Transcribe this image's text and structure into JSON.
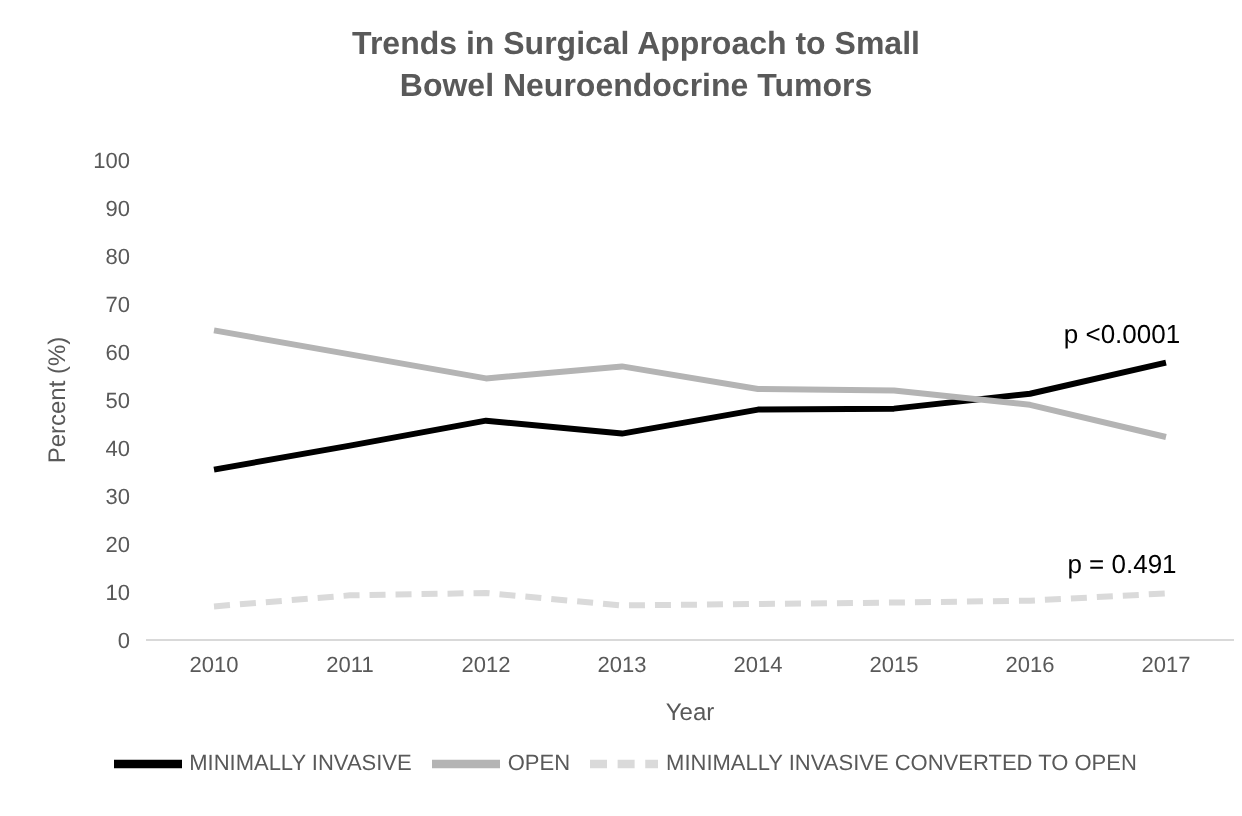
{
  "chart_data": {
    "type": "line",
    "title": "Trends in Surgical Approach to Small Bowel Neuroendocrine Tumors",
    "xlabel": "Year",
    "ylabel": "Percent (%)",
    "categories": [
      "2010",
      "2011",
      "2012",
      "2013",
      "2014",
      "2015",
      "2016",
      "2017"
    ],
    "series": [
      {
        "name": "MINIMALLY INVASIVE",
        "color": "#000000",
        "values": [
          35.5,
          40.5,
          45.7,
          43,
          48,
          48.2,
          51.3,
          57.8
        ]
      },
      {
        "name": "OPEN",
        "color": "#b4b4b4",
        "values": [
          64.5,
          59.5,
          54.5,
          57,
          52.3,
          52,
          49,
          42.3
        ]
      },
      {
        "name": "MINIMALLY INVASIVE CONVERTED TO OPEN",
        "color": "#dadada",
        "line_style": "dashed",
        "values": [
          7,
          9.3,
          9.8,
          7.2,
          7.5,
          7.8,
          8.2,
          9.7
        ]
      }
    ],
    "ylim": [
      0,
      100
    ],
    "yticks": [
      0,
      10,
      20,
      30,
      40,
      50,
      60,
      70,
      80,
      90,
      100
    ],
    "legend": "bottom",
    "marker": "none",
    "annotations": [
      {
        "text": "p <0.0001",
        "x": "2017",
        "y": 57.8
      },
      {
        "text": "p = 0.491",
        "x": "2017",
        "y": 9.7
      }
    ]
  }
}
